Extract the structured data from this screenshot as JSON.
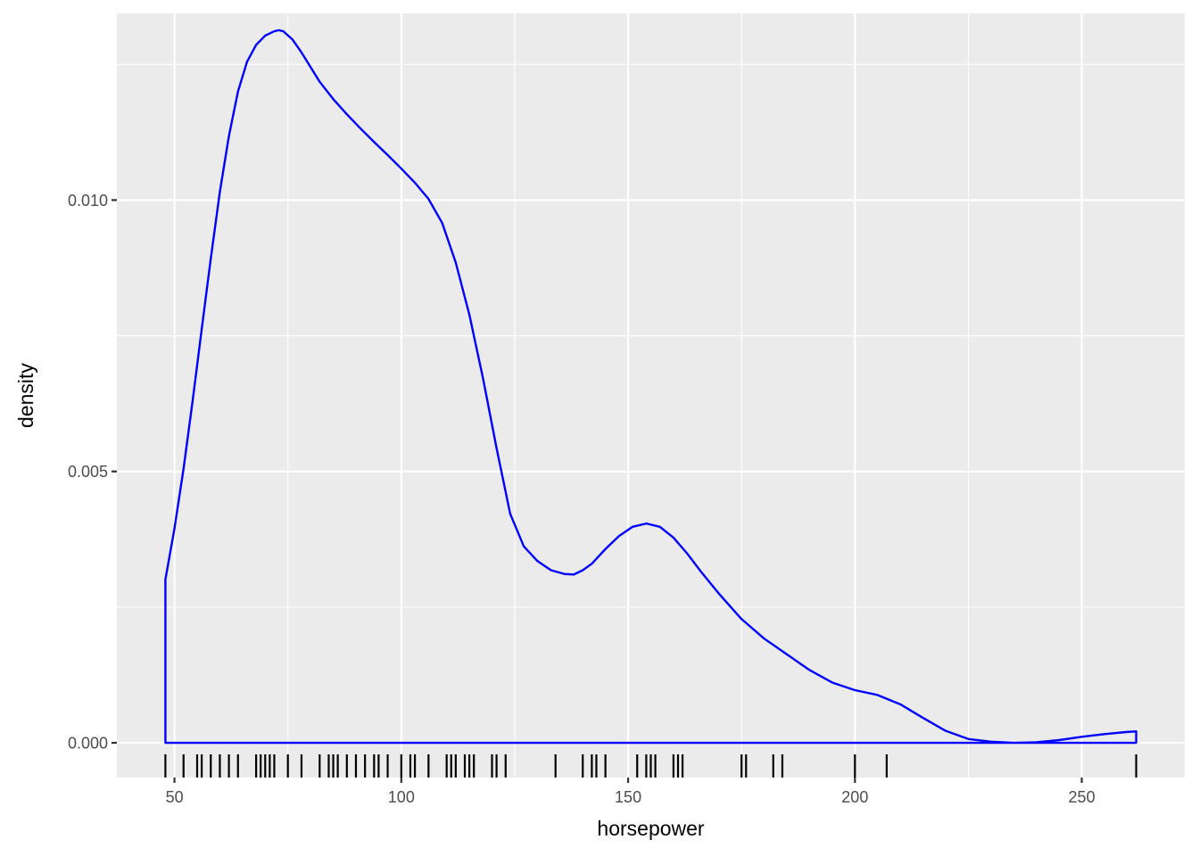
{
  "chart_data": {
    "type": "area",
    "geom": "density",
    "xlabel": "horsepower",
    "ylabel": "density",
    "xlim": [
      37.3,
      272.7
    ],
    "ylim": [
      -0.00064,
      0.01344
    ],
    "x_ticks": [
      50,
      100,
      150,
      200,
      250
    ],
    "x_tick_labels": [
      "50",
      "100",
      "150",
      "200",
      "250"
    ],
    "y_ticks": [
      0,
      0.005,
      0.01
    ],
    "y_tick_labels": [
      "0.000",
      "0.005",
      "0.010"
    ],
    "x_minor_ticks": [
      75,
      125,
      175,
      225
    ],
    "y_minor_ticks": [
      0.0025,
      0.0075,
      0.0125
    ],
    "grid": true,
    "legend": "none",
    "colors": {
      "panel_background": "#EBEBEB",
      "grid_line": "#FFFFFF",
      "density_line": "#0000FF",
      "rug": "#000000",
      "tick_text": "#4D4D4D",
      "axis_title": "#000000"
    },
    "density_curve": {
      "x": [
        48,
        50,
        52,
        54,
        56,
        58,
        60,
        62,
        64,
        66,
        68,
        70,
        72,
        73,
        74,
        76,
        78,
        80,
        82,
        85,
        88,
        91,
        94,
        97,
        100,
        103,
        106,
        109,
        112,
        115,
        118,
        121,
        124,
        127,
        130,
        133,
        136,
        138,
        140,
        142,
        145,
        148,
        151,
        154,
        157,
        160,
        163,
        166,
        170,
        175,
        180,
        185,
        190,
        195,
        200,
        205,
        210,
        215,
        220,
        225,
        230,
        235,
        240,
        245,
        250,
        255,
        260,
        262
      ],
      "y": [
        0.00301,
        0.00395,
        0.00505,
        0.0063,
        0.00762,
        0.00892,
        0.01015,
        0.01118,
        0.012,
        0.01255,
        0.01286,
        0.01303,
        0.01311,
        0.01313,
        0.01311,
        0.01296,
        0.01272,
        0.01245,
        0.01218,
        0.01186,
        0.01158,
        0.01132,
        0.01107,
        0.01083,
        0.01058,
        0.01032,
        0.01002,
        0.00958,
        0.00885,
        0.00789,
        0.00672,
        0.00543,
        0.00422,
        0.00362,
        0.00335,
        0.00318,
        0.00311,
        0.0031,
        0.00318,
        0.0033,
        0.00357,
        0.00381,
        0.00398,
        0.00404,
        0.00398,
        0.00378,
        0.00349,
        0.00316,
        0.00275,
        0.00228,
        0.00192,
        0.00163,
        0.00134,
        0.00111,
        0.00097,
        0.00088,
        0.00071,
        0.00046,
        0.00022,
        7e-05,
        2e-05,
        0.0,
        1e-05,
        5e-05,
        0.00011,
        0.00016,
        0.0002,
        0.00021
      ]
    },
    "rug_x": [
      48,
      52,
      55,
      56,
      58,
      60,
      62,
      64,
      68,
      69,
      70,
      71,
      72,
      75,
      78,
      82,
      84,
      85,
      86,
      88,
      90,
      92,
      94,
      95,
      97,
      100,
      102,
      103,
      106,
      110,
      111,
      112,
      114,
      115,
      116,
      120,
      121,
      123,
      134,
      140,
      142,
      143,
      145,
      152,
      154,
      155,
      156,
      160,
      161,
      162,
      175,
      176,
      182,
      184,
      200,
      207,
      262
    ]
  }
}
